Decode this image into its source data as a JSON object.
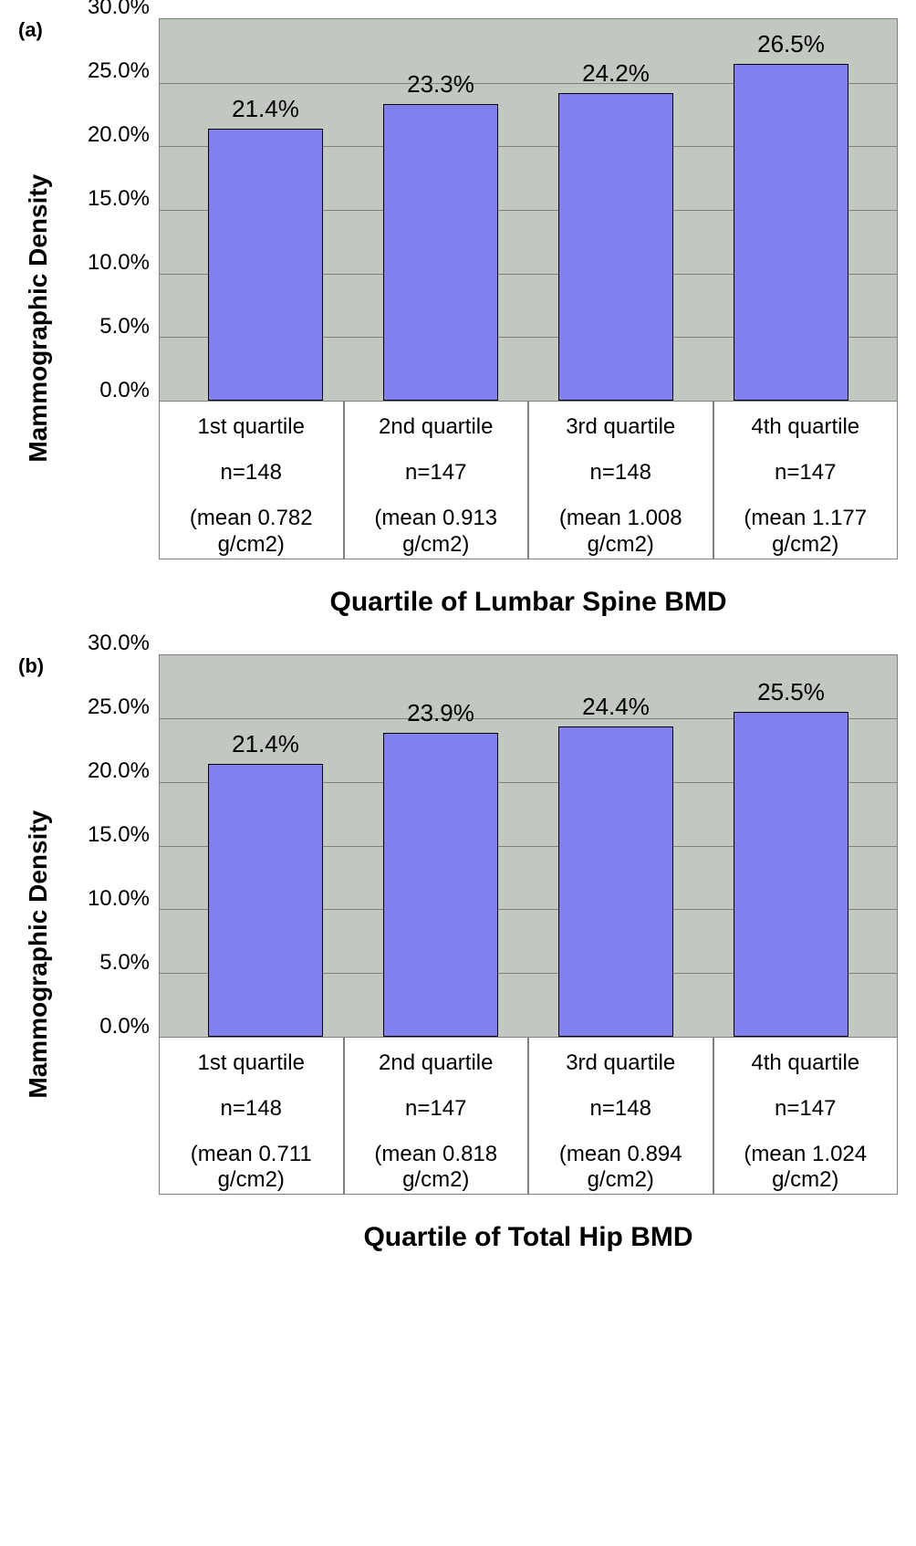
{
  "panels": [
    {
      "panel_label": "(a)",
      "y_axis_label": "Mammographic Density",
      "x_axis_title": "Quartile of Lumbar Spine BMD",
      "type": "bar",
      "ylim": [
        0,
        30
      ],
      "ytick_step": 5,
      "yticks": [
        "30.0%",
        "25.0%",
        "20.0%",
        "15.0%",
        "10.0%",
        "5.0%",
        "0.0%"
      ],
      "plot_bg": "#c0c8c0",
      "grid_color": "#808080",
      "bar_color": "#8080f0",
      "bar_border": "#000000",
      "bars": [
        {
          "value": 21.4,
          "label": "21.4%",
          "xcat": "1st quartile",
          "n": "n=148",
          "mean": "(mean 0.782 g/cm2)"
        },
        {
          "value": 23.3,
          "label": "23.3%",
          "xcat": "2nd quartile",
          "n": "n=147",
          "mean": "(mean 0.913 g/cm2)"
        },
        {
          "value": 24.2,
          "label": "24.2%",
          "xcat": "3rd quartile",
          "n": "n=148",
          "mean": "(mean 1.008 g/cm2)"
        },
        {
          "value": 26.5,
          "label": "26.5%",
          "xcat": "4th quartile",
          "n": "n=147",
          "mean": "(mean 1.177 g/cm2)"
        }
      ]
    },
    {
      "panel_label": "(b)",
      "y_axis_label": "Mammographic Density",
      "x_axis_title": "Quartile of Total Hip BMD",
      "type": "bar",
      "ylim": [
        0,
        30
      ],
      "ytick_step": 5,
      "yticks": [
        "30.0%",
        "25.0%",
        "20.0%",
        "15.0%",
        "10.0%",
        "5.0%",
        "0.0%"
      ],
      "plot_bg": "#c0c8c0",
      "grid_color": "#808080",
      "bar_color": "#8080f0",
      "bar_border": "#000000",
      "bars": [
        {
          "value": 21.4,
          "label": "21.4%",
          "xcat": "1st quartile",
          "n": "n=148",
          "mean": "(mean 0.711 g/cm2)"
        },
        {
          "value": 23.9,
          "label": "23.9%",
          "xcat": "2nd quartile",
          "n": "n=147",
          "mean": "(mean 0.818 g/cm2)"
        },
        {
          "value": 24.4,
          "label": "24.4%",
          "xcat": "3rd quartile",
          "n": "n=148",
          "mean": "(mean 0.894 g/cm2)"
        },
        {
          "value": 25.5,
          "label": "25.5%",
          "xcat": "4th quartile",
          "n": "n=147",
          "mean": "(mean 1.024 g/cm2)"
        }
      ]
    }
  ]
}
